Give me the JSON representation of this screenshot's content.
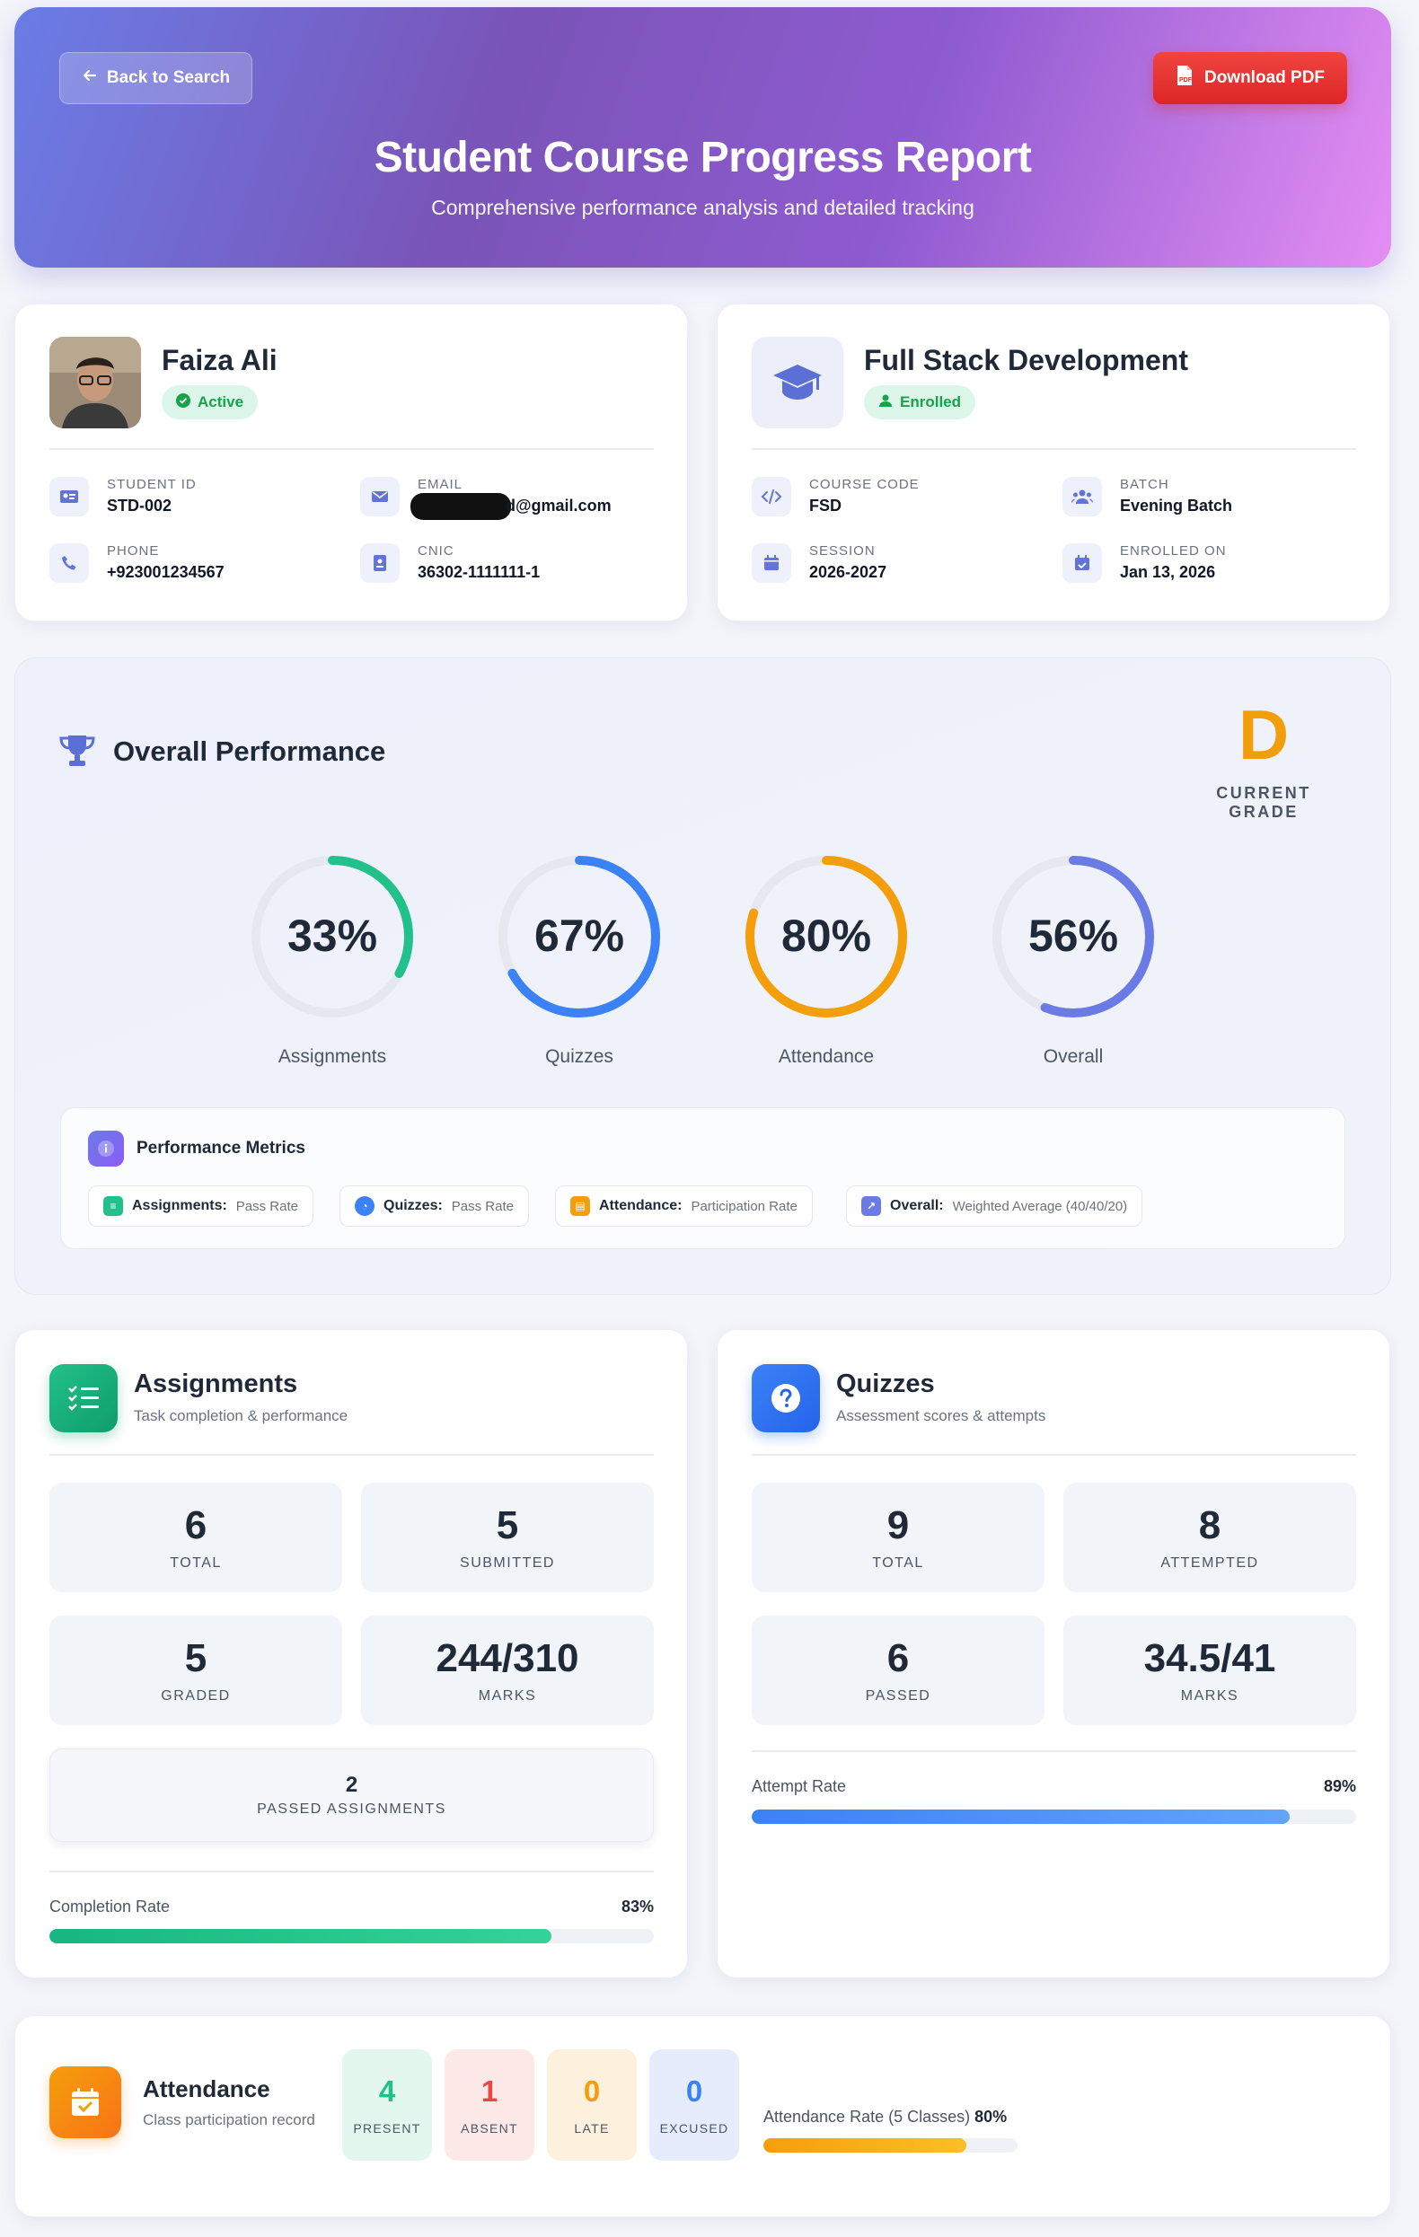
{
  "header": {
    "back_label": "Back to Search",
    "pdf_label": "Download PDF",
    "title": "Student Course Progress Report",
    "subtitle": "Comprehensive performance analysis and detailed tracking"
  },
  "student": {
    "name": "Faiza Ali",
    "status": "Active",
    "fields": [
      {
        "label": "STUDENT ID",
        "value": "STD-002",
        "icon": "id-card-icon"
      },
      {
        "label": "EMAIL",
        "value": "d@gmail.com",
        "icon": "envelope-icon"
      },
      {
        "label": "PHONE",
        "value": "+923001234567",
        "icon": "phone-icon"
      },
      {
        "label": "CNIC",
        "value": "36302-1111111-1",
        "icon": "badge-icon"
      }
    ]
  },
  "course": {
    "name": "Full Stack Development",
    "status": "Enrolled",
    "fields": [
      {
        "label": "COURSE CODE",
        "value": "FSD",
        "icon": "code-icon"
      },
      {
        "label": "BATCH",
        "value": "Evening Batch",
        "icon": "users-icon"
      },
      {
        "label": "SESSION",
        "value": "2026-2027",
        "icon": "calendar-icon"
      },
      {
        "label": "ENROLLED ON",
        "value": "Jan 13, 2026",
        "icon": "calendar-check-icon"
      }
    ]
  },
  "performance": {
    "title": "Overall Performance",
    "grade": "D",
    "grade_label": "CURRENT GRADE",
    "rings": [
      {
        "value": "33%",
        "pct": 33,
        "label": "Assignments",
        "color": "#22c08a"
      },
      {
        "value": "67%",
        "pct": 67,
        "label": "Quizzes",
        "color": "#3b82f6"
      },
      {
        "value": "80%",
        "pct": 80,
        "label": "Attendance",
        "color": "#f59e0b"
      },
      {
        "value": "56%",
        "pct": 56,
        "label": "Overall",
        "color": "#6b7be6"
      }
    ],
    "metrics_title": "Performance Metrics",
    "metrics": [
      {
        "name": "Assignments:",
        "desc": "Pass Rate",
        "color": "#22c08a"
      },
      {
        "name": "Quizzes:",
        "desc": "Pass Rate",
        "color": "#3b82f6"
      },
      {
        "name": "Attendance:",
        "desc": "Participation Rate",
        "color": "#f59e0b"
      },
      {
        "name": "Overall:",
        "desc": "Weighted Average (40/40/20)",
        "color": "#6b7be6"
      }
    ]
  },
  "assignments": {
    "title": "Assignments",
    "subtitle": "Task completion & performance",
    "stats": [
      {
        "value": "6",
        "label": "TOTAL"
      },
      {
        "value": "5",
        "label": "SUBMITTED"
      },
      {
        "value": "5",
        "label": "GRADED"
      },
      {
        "value": "244/310",
        "label": "MARKS"
      }
    ],
    "passed": {
      "value": "2",
      "label": "PASSED ASSIGNMENTS"
    },
    "rate_label": "Completion Rate",
    "rate_value": "83%",
    "rate_pct": 83
  },
  "quizzes": {
    "title": "Quizzes",
    "subtitle": "Assessment scores & attempts",
    "stats": [
      {
        "value": "9",
        "label": "TOTAL"
      },
      {
        "value": "8",
        "label": "ATTEMPTED"
      },
      {
        "value": "6",
        "label": "PASSED"
      },
      {
        "value": "34.5/41",
        "label": "MARKS"
      }
    ],
    "rate_label": "Attempt Rate",
    "rate_value": "89%",
    "rate_pct": 89
  },
  "attendance": {
    "title": "Attendance",
    "subtitle": "Class participation record",
    "boxes": [
      {
        "value": "4",
        "label": "PRESENT",
        "color": "#22c08a",
        "bg": "#e3f7ee"
      },
      {
        "value": "1",
        "label": "ABSENT",
        "color": "#ef4444",
        "bg": "#fde8e8"
      },
      {
        "value": "0",
        "label": "LATE",
        "color": "#f59e0b",
        "bg": "#fdf1dd"
      },
      {
        "value": "0",
        "label": "EXCUSED",
        "color": "#3b82f6",
        "bg": "#e5edfc"
      }
    ],
    "rate_label": "Attendance Rate (5 Classes)",
    "rate_value": "80%",
    "rate_pct": 80
  }
}
